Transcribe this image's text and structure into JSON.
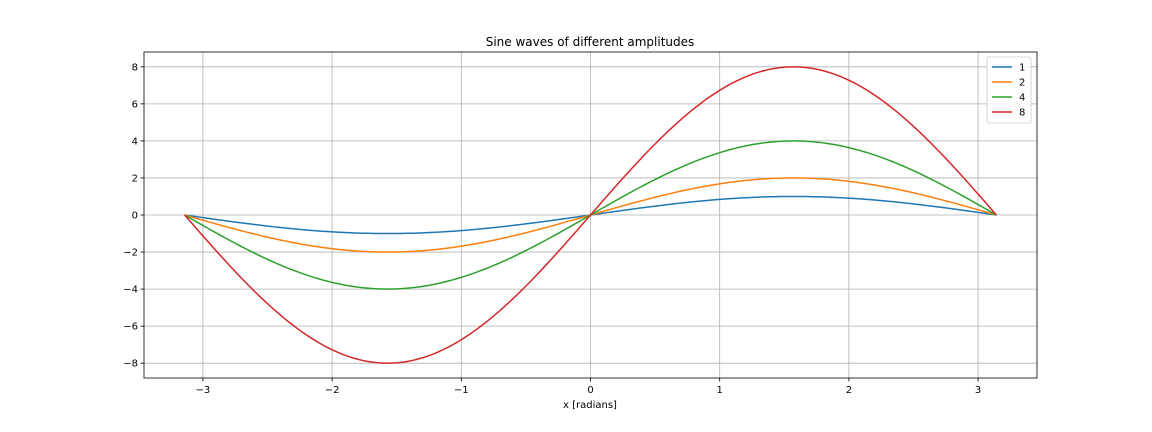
{
  "chart_data": {
    "type": "line",
    "title": "Sine waves of different amplitudes",
    "xlabel": "x [radians]",
    "ylabel": "",
    "xlim": [
      -3.456,
      3.456
    ],
    "ylim": [
      -8.8,
      8.8
    ],
    "xticks": [
      -3,
      -2,
      -1,
      0,
      1,
      2,
      3
    ],
    "xtick_labels": [
      "−3",
      "−2",
      "−1",
      "0",
      "1",
      "2",
      "3"
    ],
    "yticks": [
      -8,
      -6,
      -4,
      -2,
      0,
      2,
      4,
      6,
      8
    ],
    "ytick_labels": [
      "−8",
      "−6",
      "−4",
      "−2",
      "0",
      "2",
      "4",
      "6",
      "8"
    ],
    "grid": true,
    "legend_position": "top-right",
    "x_range": [
      -3.14159,
      3.14159
    ],
    "function": "amplitude * sin(x)",
    "series": [
      {
        "name": "1",
        "amplitude": 1,
        "color": "#1f77b4"
      },
      {
        "name": "2",
        "amplitude": 2,
        "color": "#ff7f0e"
      },
      {
        "name": "4",
        "amplitude": 4,
        "color": "#2ca02c"
      },
      {
        "name": "8",
        "amplitude": 8,
        "color": "#d62728"
      }
    ]
  }
}
